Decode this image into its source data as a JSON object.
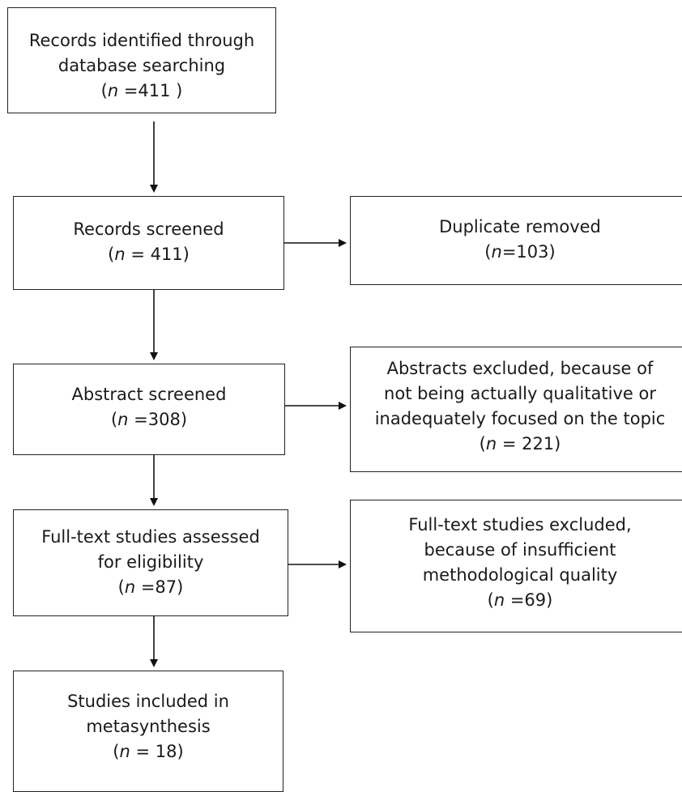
{
  "flow": {
    "identified": {
      "lines": [
        "Records identified through",
        "database searching"
      ],
      "n_prefix": "(",
      "n_var": "n",
      "n_value": " =411   )"
    },
    "screened": {
      "lines": [
        "Records screened"
      ],
      "n_prefix": "(",
      "n_var": "n",
      "n_value": " = 411)"
    },
    "duplicate": {
      "lines": [
        "Duplicate removed"
      ],
      "n_prefix": "(",
      "n_var": "n",
      "n_value": "=103)"
    },
    "abstract": {
      "lines": [
        "Abstract screened"
      ],
      "n_prefix": "(",
      "n_var": "n",
      "n_value": " =308)"
    },
    "abstracts_excluded": {
      "lines": [
        "Abstracts excluded, because of",
        "not being actually qualitative or",
        "inadequately focused on the topic"
      ],
      "n_prefix": "(",
      "n_var": "n",
      "n_value": " = 221)"
    },
    "fulltext": {
      "lines": [
        "Full-text studies assessed",
        "for eligibility"
      ],
      "n_prefix": "(",
      "n_var": "n",
      "n_value": " =87)"
    },
    "fulltext_excluded": {
      "lines": [
        "Full-text studies excluded,",
        "because of insufficient",
        "methodological quality"
      ],
      "n_prefix": "(",
      "n_var": "n",
      "n_value": " =69)"
    },
    "included": {
      "lines": [
        "Studies included in",
        "metasynthesis"
      ],
      "n_prefix": "(",
      "n_var": "n",
      "n_value": " = 18)"
    }
  }
}
